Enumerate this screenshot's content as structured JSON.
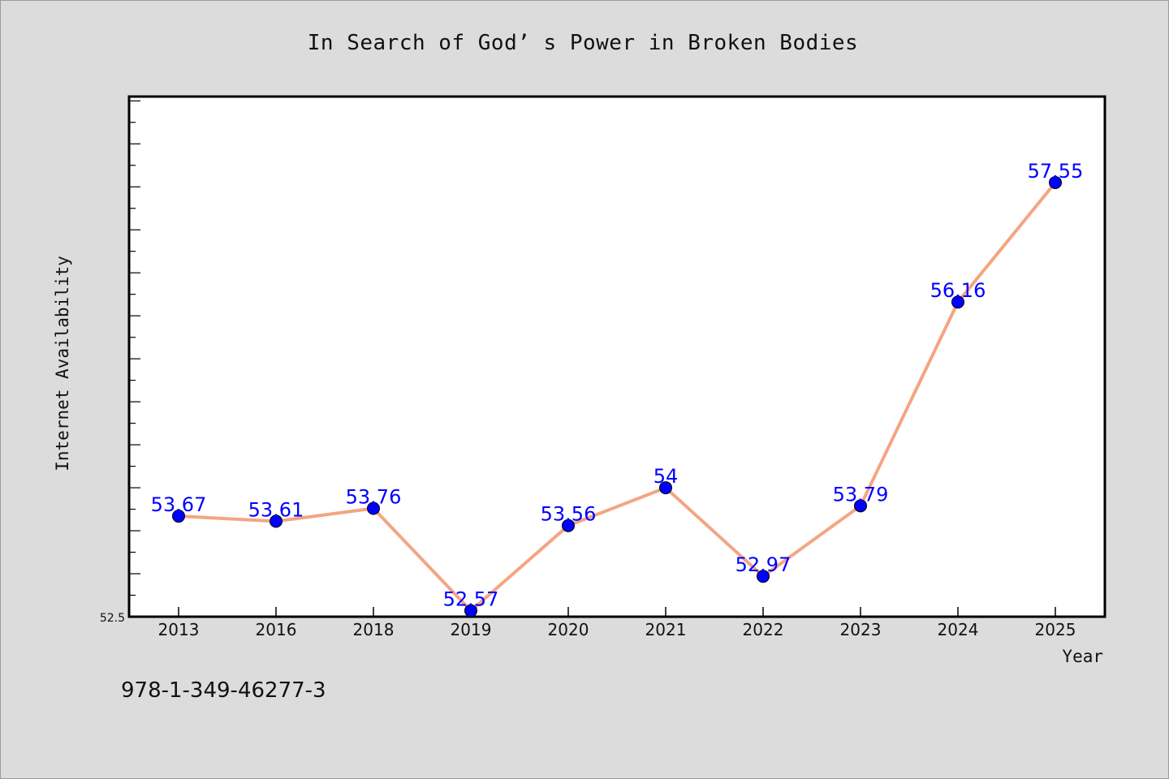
{
  "chart_data": {
    "type": "line",
    "title": "In Search of God’ s Power in Broken Bodies",
    "xlabel": "Year",
    "ylabel": "Internet Availability",
    "categories": [
      "2013",
      "2016",
      "2018",
      "2019",
      "2020",
      "2021",
      "2022",
      "2023",
      "2024",
      "2025"
    ],
    "series": [
      {
        "values": [
          53.67,
          53.61,
          53.76,
          52.57,
          53.56,
          54,
          52.97,
          53.79,
          56.16,
          57.55
        ]
      }
    ],
    "data_labels": [
      "53.67",
      "53.61",
      "53.76",
      "52.57",
      "53.56",
      "54",
      "52.97",
      "53.79",
      "56.16",
      "57.55"
    ],
    "y_tick_label_min": "52.5",
    "ylim": [
      52.5,
      58.55
    ],
    "grid": false,
    "colors": {
      "line": "#f4a582",
      "marker": "#0000ff",
      "data_label": "#0000ff",
      "plot_bg": "#ffffff",
      "page_bg": "#dcdcdc"
    }
  },
  "footer": {
    "isbn": "978-1-349-46277-3"
  }
}
